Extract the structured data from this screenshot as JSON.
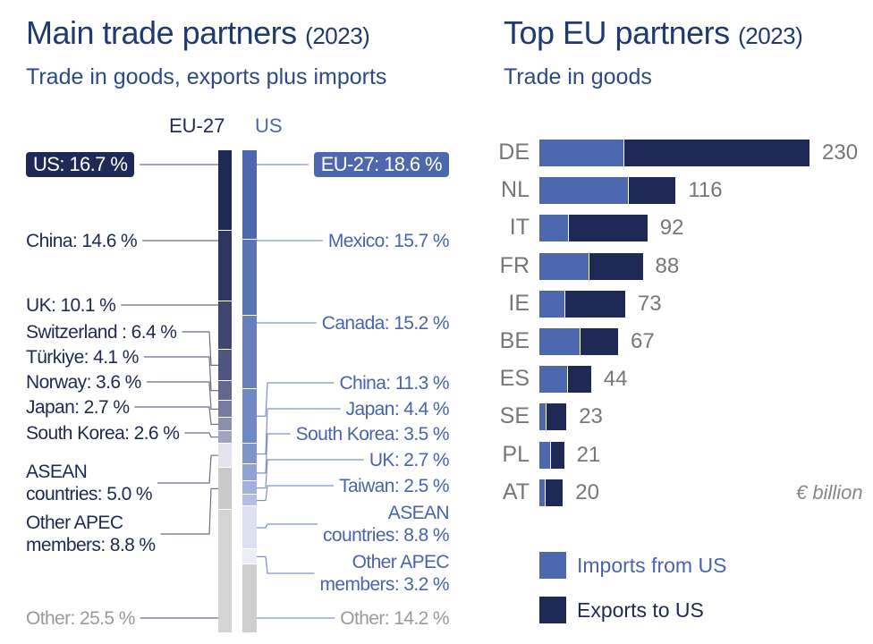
{
  "left_panel": {
    "title": "Main trade partners",
    "year": "(2023)",
    "subtitle": "Trade in goods, exports plus imports"
  },
  "right_panel": {
    "title": "Top EU partners",
    "year": "(2023)",
    "subtitle": "Trade in goods"
  },
  "chart_data": [
    {
      "type": "bar",
      "stacked": true,
      "orientation": "vertical-100%",
      "title": "Main trade partners (2023)",
      "columns": [
        {
          "name": "EU-27",
          "segments": [
            {
              "partner": "US",
              "share": 16.7,
              "label": "US: 16.7 %",
              "color": "#1e2a55"
            },
            {
              "partner": "China",
              "share": 14.6,
              "label": "China: 14.6 %",
              "color": "#2e3762"
            },
            {
              "partner": "UK",
              "share": 10.1,
              "label": "UK: 10.1 %",
              "color": "#3e4570"
            },
            {
              "partner": "Switzerland",
              "share": 6.4,
              "label": "Switzerland : 6.4 %",
              "color": "#4f5580"
            },
            {
              "partner": "Türkiye",
              "share": 4.1,
              "label": "Türkiye: 4.1 %",
              "color": "#63688f"
            },
            {
              "partner": "Norway",
              "share": 3.6,
              "label": "Norway: 3.6 %",
              "color": "#787b9f"
            },
            {
              "partner": "Japan",
              "share": 2.7,
              "label": "Japan: 2.7 %",
              "color": "#8c8fae"
            },
            {
              "partner": "South Korea",
              "share": 2.6,
              "label": "South Korea: 2.6 %",
              "color": "#a2a4bf"
            },
            {
              "partner": "ASEAN countries",
              "share": 5.0,
              "label": "ASEAN countries: 5.0 %",
              "color": "#e2e3ec"
            },
            {
              "partner": "Other APEC members",
              "share": 8.8,
              "label": "Other APEC members: 8.8 %",
              "color": "#c9c9c9"
            },
            {
              "partner": "Other",
              "share": 25.5,
              "label": "Other: 25.5 %",
              "color": "#d4d4d4"
            }
          ]
        },
        {
          "name": "US",
          "segments": [
            {
              "partner": "EU-27",
              "share": 18.6,
              "label": "EU-27: 18.6 %",
              "color": "#4e68b0"
            },
            {
              "partner": "Mexico",
              "share": 15.7,
              "label": "Mexico: 15.7 %",
              "color": "#5a73b6"
            },
            {
              "partner": "Canada",
              "share": 15.2,
              "label": "Canada: 15.2 %",
              "color": "#677fbd"
            },
            {
              "partner": "China",
              "share": 11.3,
              "label": "China: 11.3 %",
              "color": "#7189c3"
            },
            {
              "partner": "Japan",
              "share": 4.4,
              "label": "Japan: 4.4 %",
              "color": "#7f95ca"
            },
            {
              "partner": "South Korea",
              "share": 3.5,
              "label": "South Korea: 3.5 %",
              "color": "#8fa2d1"
            },
            {
              "partner": "UK",
              "share": 2.7,
              "label": "UK: 2.7 %",
              "color": "#a0b0d8"
            },
            {
              "partner": "Taiwan",
              "share": 2.5,
              "label": "Taiwan: 2.5 %",
              "color": "#b2bfdf"
            },
            {
              "partner": "ASEAN countries",
              "share": 8.8,
              "label": "ASEAN countries: 8.8 %",
              "color": "#dde1f1"
            },
            {
              "partner": "Other APEC members",
              "share": 3.2,
              "label": "Other APEC members: 3.2 %",
              "color": "#eceef6"
            },
            {
              "partner": "Other",
              "share": 14.2,
              "label": "Other: 14.2 %",
              "color": "#cfcfcf"
            }
          ]
        }
      ],
      "unit": "%"
    },
    {
      "type": "bar",
      "stacked": true,
      "orientation": "horizontal",
      "title": "Top EU partners (2023)",
      "categories": [
        "DE",
        "NL",
        "IT",
        "FR",
        "IE",
        "BE",
        "ES",
        "SE",
        "PL",
        "AT"
      ],
      "totals": [
        230,
        116,
        92,
        88,
        73,
        67,
        44,
        23,
        21,
        20
      ],
      "series": [
        {
          "name": "Imports from US",
          "color": "#4e68b0",
          "values": [
            72,
            76,
            25,
            43,
            22,
            35,
            24,
            6,
            10,
            5
          ]
        },
        {
          "name": "Exports to US",
          "color": "#1e2a55",
          "values": [
            158,
            40,
            67,
            45,
            51,
            32,
            20,
            17,
            11,
            15
          ]
        }
      ],
      "unit": "€ billion",
      "legend": "bottom"
    }
  ]
}
